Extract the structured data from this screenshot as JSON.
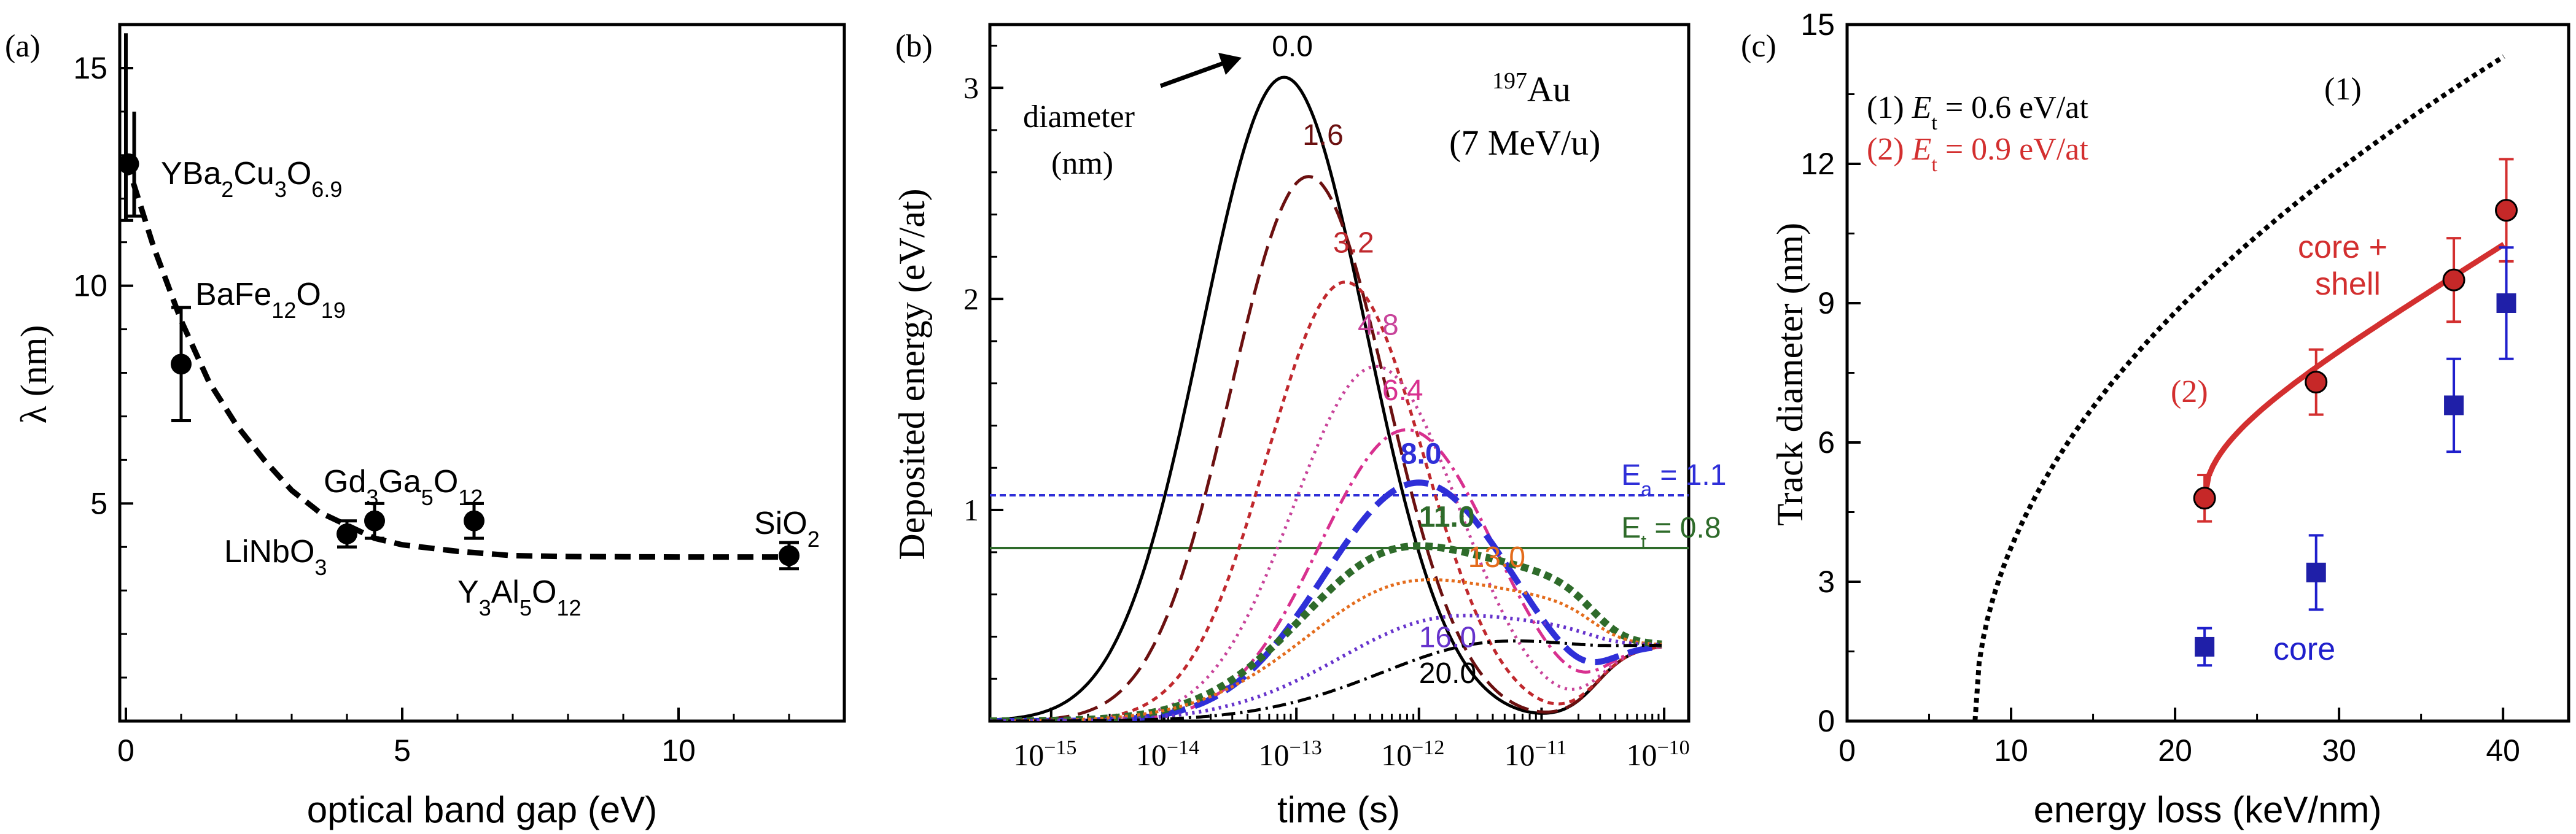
{
  "chart_data": [
    {
      "panel": "(a)",
      "type": "scatter",
      "xlabel": "optical band gap (eV)",
      "ylabel": "λ (nm)",
      "xlim": [
        0,
        13
      ],
      "ylim": [
        0,
        16
      ],
      "xticks": [
        "0",
        "5",
        "10"
      ],
      "yticks": [
        "5",
        "10",
        "15"
      ],
      "points": [
        {
          "label_base": "YBa",
          "label_parts": [
            [
              "YBa",
              ""
            ],
            [
              "2",
              "sub"
            ],
            [
              "Cu",
              ""
            ],
            [
              "3",
              "sub"
            ],
            [
              "O",
              ""
            ],
            [
              "6.9",
              "sub"
            ]
          ],
          "x": 0.05,
          "y": 12.8,
          "err": 0.0
        },
        {
          "label_parts": [
            [
              "BaFe",
              ""
            ],
            [
              "12",
              "sub"
            ],
            [
              "O",
              ""
            ],
            [
              "19",
              "sub"
            ]
          ],
          "x": 1.0,
          "y": 8.2,
          "err": 1.3
        },
        {
          "label_parts": [
            [
              "LiNbO",
              ""
            ],
            [
              "3",
              "sub"
            ]
          ],
          "x": 4.0,
          "y": 4.3,
          "err": 0.3
        },
        {
          "label_parts": [
            [
              "Gd",
              ""
            ],
            [
              "3",
              "sub"
            ],
            [
              "Ga",
              ""
            ],
            [
              "5",
              "sub"
            ],
            [
              "O",
              ""
            ],
            [
              "12",
              "sub"
            ]
          ],
          "x": 4.5,
          "y": 4.6,
          "err": 0.4
        },
        {
          "label_parts": [
            [
              "Y",
              ""
            ],
            [
              "3",
              "sub"
            ],
            [
              "Al",
              ""
            ],
            [
              "5",
              "sub"
            ],
            [
              "O",
              ""
            ],
            [
              "12",
              "sub"
            ]
          ],
          "x": 6.3,
          "y": 4.6,
          "err": 0.4
        },
        {
          "label_parts": [
            [
              "SiO",
              ""
            ],
            [
              "2",
              "sub"
            ]
          ],
          "x": 12.0,
          "y": 3.8,
          "err": 0.3
        }
      ],
      "fit_curve": [
        [
          0,
          12.9
        ],
        [
          0.5,
          10.9
        ],
        [
          1,
          9.2
        ],
        [
          1.5,
          7.8
        ],
        [
          2,
          6.8
        ],
        [
          2.5,
          6.0
        ],
        [
          3,
          5.3
        ],
        [
          3.5,
          4.8
        ],
        [
          4,
          4.5
        ],
        [
          4.5,
          4.2
        ],
        [
          5,
          4.05
        ],
        [
          6,
          3.9
        ],
        [
          7,
          3.8
        ],
        [
          8,
          3.78
        ],
        [
          10,
          3.77
        ],
        [
          12,
          3.77
        ]
      ],
      "left_errorbars": [
        [
          0.0,
          11.5,
          15.8
        ],
        [
          0.15,
          11.6,
          14.0
        ]
      ]
    },
    {
      "panel": "(b)",
      "type": "line",
      "xlabel": "time (s)",
      "ylabel": "Deposited energy (eV/at)",
      "xlim_log10": [
        -15.5,
        -9.8
      ],
      "ylim": [
        0,
        3.3
      ],
      "xticks": [
        {
          "base": "10",
          "exp": "−15",
          "log": -15
        },
        {
          "base": "10",
          "exp": "−14",
          "log": -14
        },
        {
          "base": "10",
          "exp": "−13",
          "log": -13
        },
        {
          "base": "10",
          "exp": "−12",
          "log": -12
        },
        {
          "base": "10",
          "exp": "−11",
          "log": -11
        },
        {
          "base": "10",
          "exp": "−10",
          "log": -10
        }
      ],
      "yticks": [
        "1",
        "2",
        "3"
      ],
      "ion": {
        "mass": "197",
        "symbol": "Au",
        "energy": "(7 MeV/u)"
      },
      "annot_diameter": "diameter",
      "annot_nm": "(nm)",
      "series": [
        {
          "name": "0.0",
          "color": "#000000",
          "dash": "",
          "width": 5,
          "bold": false,
          "A": 3.05,
          "c": -13.1,
          "s": 0.95,
          "plateau": 0.0,
          "label_at": [
            -13.2,
            3.15
          ]
        },
        {
          "name": "1.6",
          "color": "#6b1010",
          "dash": "34 14",
          "width": 5,
          "bold": false,
          "A": 2.58,
          "c": -12.9,
          "s": 0.9,
          "plateau": 0.0,
          "label_at": [
            -12.95,
            2.73
          ]
        },
        {
          "name": "3.2",
          "color": "#c0282d",
          "dash": "10 8",
          "width": 5,
          "bold": false,
          "A": 2.08,
          "c": -12.6,
          "s": 0.9,
          "plateau": 0.0,
          "label_at": [
            -12.7,
            2.22
          ]
        },
        {
          "name": "4.8",
          "color": "#c8439a",
          "dash": "4 8",
          "width": 5,
          "bold": false,
          "A": 1.68,
          "c": -12.35,
          "s": 0.95,
          "plateau": 0.0,
          "label_at": [
            -12.5,
            1.83
          ]
        },
        {
          "name": "6.4",
          "color": "#d8308f",
          "dash": "24 9 5 9",
          "width": 5,
          "bold": false,
          "A": 1.38,
          "c": -12.1,
          "s": 1.0,
          "plateau": 0.0,
          "label_at": [
            -12.3,
            1.52
          ]
        },
        {
          "name": "8.0",
          "color": "#2f2fd8",
          "dash": "40 16",
          "width": 10,
          "bold": true,
          "A": 1.13,
          "c": -12.0,
          "s": 1.1,
          "plateau": 0.0,
          "label_at": [
            -12.15,
            1.22
          ]
        },
        {
          "name": "11.0",
          "color": "#2e6b2a",
          "dash": "12 8",
          "width": 12,
          "bold": true,
          "A": 0.83,
          "c": -12.0,
          "s": 1.25,
          "plateau": 0.25,
          "label_at": [
            -12.0,
            0.92
          ]
        },
        {
          "name": "13.0",
          "color": "#e46c1c",
          "dash": "5 5",
          "width": 5,
          "bold": false,
          "A": 0.67,
          "c": -11.9,
          "s": 1.35,
          "plateau": 0.25,
          "label_at": [
            -11.6,
            0.73
          ]
        },
        {
          "name": "16.0",
          "color": "#6633cc",
          "dash": "4 7",
          "width": 6,
          "bold": false,
          "A": 0.5,
          "c": -11.6,
          "s": 1.4,
          "plateau": 0.25,
          "label_at": [
            -12.0,
            0.35
          ]
        },
        {
          "name": "20.0",
          "color": "#000000",
          "dash": "22 8 4 8",
          "width": 5,
          "bold": false,
          "A": 0.38,
          "c": -11.2,
          "s": 1.5,
          "plateau": 0.25,
          "label_at": [
            -12.0,
            0.18
          ]
        }
      ],
      "hlines": [
        {
          "name": "E_a",
          "letter": "E",
          "sub": "a",
          "value_text": " = 1.1",
          "y": 1.07,
          "color": "#2f2fd8",
          "dash": "10 6",
          "label_at": [
            -10.35,
            1.12
          ]
        },
        {
          "name": "E_t",
          "letter": "E",
          "sub": "t",
          "value_text": " = 0.8",
          "y": 0.82,
          "color": "#2e6b2a",
          "dash": "",
          "label_at": [
            -10.35,
            0.87
          ]
        }
      ]
    },
    {
      "panel": "(c)",
      "type": "scatter",
      "xlabel": "energy loss (keV/nm)",
      "ylabel": "Track diameter (nm)",
      "xlim": [
        0,
        44
      ],
      "ylim": [
        0,
        15
      ],
      "xticks": [
        "0",
        "10",
        "20",
        "30",
        "40"
      ],
      "yticks": [
        "0",
        "3",
        "6",
        "9",
        "12",
        "15"
      ],
      "legend": [
        {
          "prefix": "(1) ",
          "letter": "E",
          "sub": "t",
          "rest": " = 0.6 eV/at",
          "color": "#000000"
        },
        {
          "prefix": "(2) ",
          "letter": "E",
          "sub": "t",
          "rest": " = 0.9 eV/at",
          "color": "#d32f2f"
        }
      ],
      "curve1_label": "(1)",
      "curve2_label": "(2)",
      "label_core_shell_1": "core +",
      "label_core_shell_2": "shell",
      "label_core": "core",
      "core_shell_points": [
        {
          "x": 21.8,
          "y": 4.8,
          "err": 0.5
        },
        {
          "x": 28.6,
          "y": 7.3,
          "err": 0.7
        },
        {
          "x": 37.0,
          "y": 9.5,
          "err": 0.9
        },
        {
          "x": 40.2,
          "y": 11.0,
          "err": 1.1
        }
      ],
      "core_points": [
        {
          "x": 21.8,
          "y": 1.6,
          "err": 0.4
        },
        {
          "x": 28.6,
          "y": 3.2,
          "err": 0.8
        },
        {
          "x": 37.0,
          "y": 6.8,
          "err": 1.0
        },
        {
          "x": 40.2,
          "y": 9.0,
          "err": 1.2
        }
      ],
      "curve1": {
        "x0": 7.8,
        "k": 3.6,
        "xmax": 40.2
      },
      "curve2": {
        "x0": 21.8,
        "xmax": 40.2,
        "y0": 4.8,
        "y1": 10.3
      }
    }
  ]
}
